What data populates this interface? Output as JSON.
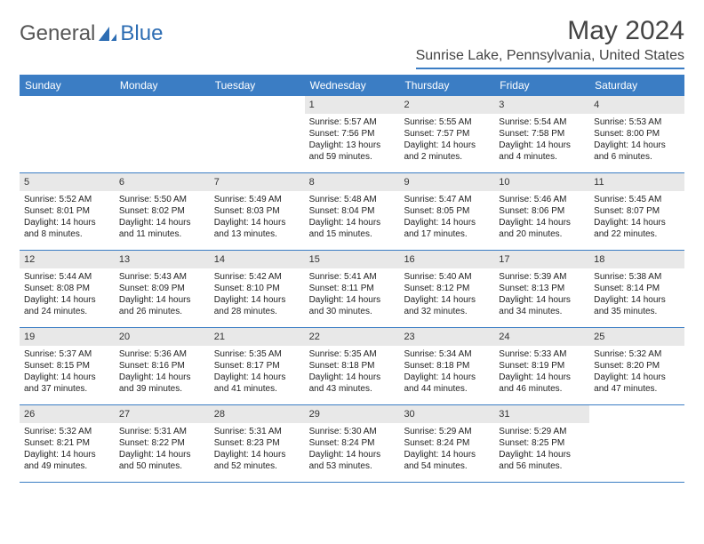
{
  "logo": {
    "text1": "General",
    "text2": "Blue"
  },
  "title": "May 2024",
  "location": "Sunrise Lake, Pennsylvania, United States",
  "colors": {
    "accent": "#3b7dc4",
    "header_text": "#ffffff",
    "daynum_bg": "#e8e8e8",
    "body_text": "#222222",
    "background": "#ffffff"
  },
  "dayNames": [
    "Sunday",
    "Monday",
    "Tuesday",
    "Wednesday",
    "Thursday",
    "Friday",
    "Saturday"
  ],
  "weeks": [
    [
      null,
      null,
      null,
      {
        "n": "1",
        "sr": "5:57 AM",
        "ss": "7:56 PM",
        "dl": "13 hours and 59 minutes."
      },
      {
        "n": "2",
        "sr": "5:55 AM",
        "ss": "7:57 PM",
        "dl": "14 hours and 2 minutes."
      },
      {
        "n": "3",
        "sr": "5:54 AM",
        "ss": "7:58 PM",
        "dl": "14 hours and 4 minutes."
      },
      {
        "n": "4",
        "sr": "5:53 AM",
        "ss": "8:00 PM",
        "dl": "14 hours and 6 minutes."
      }
    ],
    [
      {
        "n": "5",
        "sr": "5:52 AM",
        "ss": "8:01 PM",
        "dl": "14 hours and 8 minutes."
      },
      {
        "n": "6",
        "sr": "5:50 AM",
        "ss": "8:02 PM",
        "dl": "14 hours and 11 minutes."
      },
      {
        "n": "7",
        "sr": "5:49 AM",
        "ss": "8:03 PM",
        "dl": "14 hours and 13 minutes."
      },
      {
        "n": "8",
        "sr": "5:48 AM",
        "ss": "8:04 PM",
        "dl": "14 hours and 15 minutes."
      },
      {
        "n": "9",
        "sr": "5:47 AM",
        "ss": "8:05 PM",
        "dl": "14 hours and 17 minutes."
      },
      {
        "n": "10",
        "sr": "5:46 AM",
        "ss": "8:06 PM",
        "dl": "14 hours and 20 minutes."
      },
      {
        "n": "11",
        "sr": "5:45 AM",
        "ss": "8:07 PM",
        "dl": "14 hours and 22 minutes."
      }
    ],
    [
      {
        "n": "12",
        "sr": "5:44 AM",
        "ss": "8:08 PM",
        "dl": "14 hours and 24 minutes."
      },
      {
        "n": "13",
        "sr": "5:43 AM",
        "ss": "8:09 PM",
        "dl": "14 hours and 26 minutes."
      },
      {
        "n": "14",
        "sr": "5:42 AM",
        "ss": "8:10 PM",
        "dl": "14 hours and 28 minutes."
      },
      {
        "n": "15",
        "sr": "5:41 AM",
        "ss": "8:11 PM",
        "dl": "14 hours and 30 minutes."
      },
      {
        "n": "16",
        "sr": "5:40 AM",
        "ss": "8:12 PM",
        "dl": "14 hours and 32 minutes."
      },
      {
        "n": "17",
        "sr": "5:39 AM",
        "ss": "8:13 PM",
        "dl": "14 hours and 34 minutes."
      },
      {
        "n": "18",
        "sr": "5:38 AM",
        "ss": "8:14 PM",
        "dl": "14 hours and 35 minutes."
      }
    ],
    [
      {
        "n": "19",
        "sr": "5:37 AM",
        "ss": "8:15 PM",
        "dl": "14 hours and 37 minutes."
      },
      {
        "n": "20",
        "sr": "5:36 AM",
        "ss": "8:16 PM",
        "dl": "14 hours and 39 minutes."
      },
      {
        "n": "21",
        "sr": "5:35 AM",
        "ss": "8:17 PM",
        "dl": "14 hours and 41 minutes."
      },
      {
        "n": "22",
        "sr": "5:35 AM",
        "ss": "8:18 PM",
        "dl": "14 hours and 43 minutes."
      },
      {
        "n": "23",
        "sr": "5:34 AM",
        "ss": "8:18 PM",
        "dl": "14 hours and 44 minutes."
      },
      {
        "n": "24",
        "sr": "5:33 AM",
        "ss": "8:19 PM",
        "dl": "14 hours and 46 minutes."
      },
      {
        "n": "25",
        "sr": "5:32 AM",
        "ss": "8:20 PM",
        "dl": "14 hours and 47 minutes."
      }
    ],
    [
      {
        "n": "26",
        "sr": "5:32 AM",
        "ss": "8:21 PM",
        "dl": "14 hours and 49 minutes."
      },
      {
        "n": "27",
        "sr": "5:31 AM",
        "ss": "8:22 PM",
        "dl": "14 hours and 50 minutes."
      },
      {
        "n": "28",
        "sr": "5:31 AM",
        "ss": "8:23 PM",
        "dl": "14 hours and 52 minutes."
      },
      {
        "n": "29",
        "sr": "5:30 AM",
        "ss": "8:24 PM",
        "dl": "14 hours and 53 minutes."
      },
      {
        "n": "30",
        "sr": "5:29 AM",
        "ss": "8:24 PM",
        "dl": "14 hours and 54 minutes."
      },
      {
        "n": "31",
        "sr": "5:29 AM",
        "ss": "8:25 PM",
        "dl": "14 hours and 56 minutes."
      },
      null
    ]
  ],
  "labels": {
    "sunrise": "Sunrise: ",
    "sunset": "Sunset: ",
    "daylight": "Daylight: "
  }
}
